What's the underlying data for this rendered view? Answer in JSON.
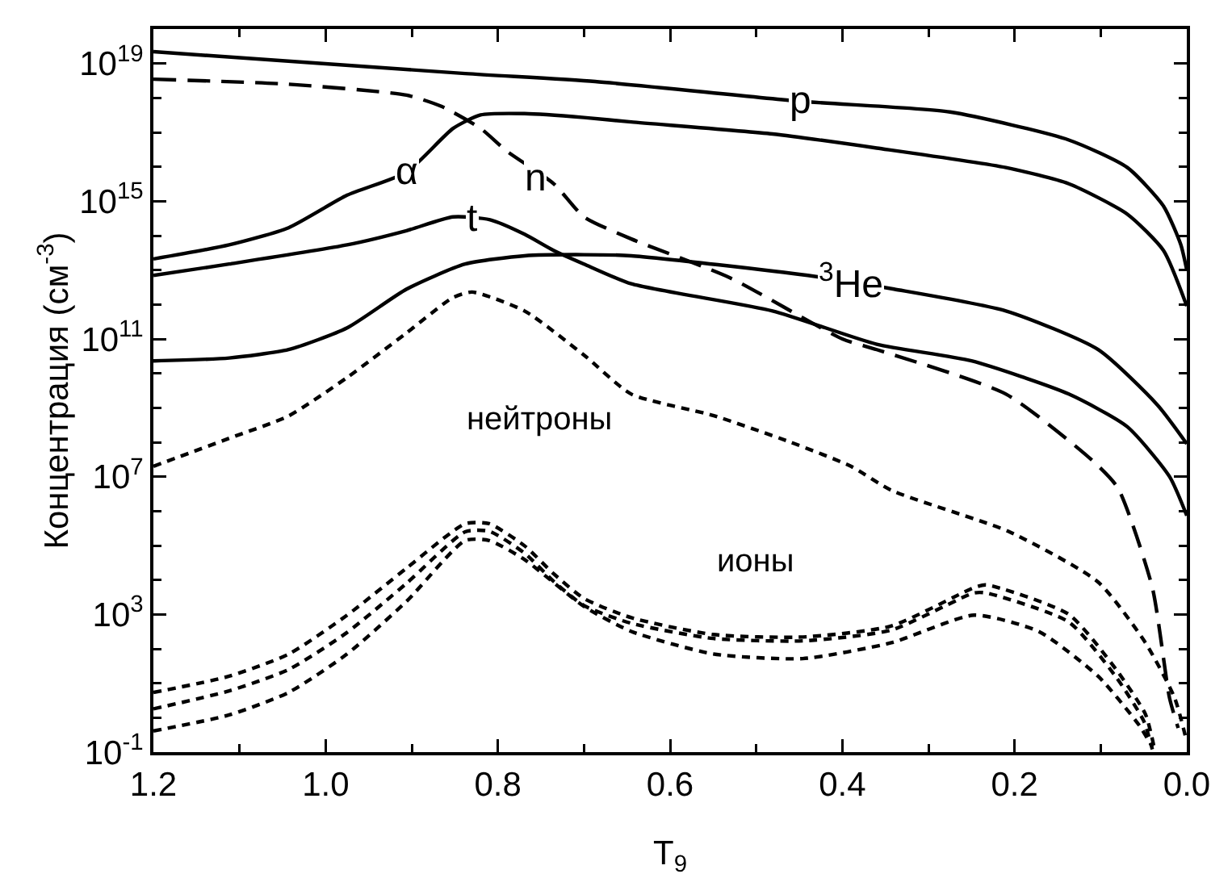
{
  "chart_data": {
    "type": "line",
    "xlabel": "T$_{9}$",
    "ylabel": "Концентрация (см$^{-3}$)",
    "log": "y",
    "grid": false,
    "marker": "none",
    "xlim": [
      1.2,
      0.0
    ],
    "xticks": [
      {
        "value": 1.2,
        "label": "1.2"
      },
      {
        "value": 1.1,
        "label": null
      },
      {
        "value": 1.0,
        "label": "1.0"
      },
      {
        "value": 0.9,
        "label": null
      },
      {
        "value": 0.8,
        "label": "0.8"
      },
      {
        "value": 0.7,
        "label": null
      },
      {
        "value": 0.6,
        "label": "0.6"
      },
      {
        "value": 0.5,
        "label": null
      },
      {
        "value": 0.4,
        "label": "0.4"
      },
      {
        "value": 0.3,
        "label": null
      },
      {
        "value": 0.2,
        "label": "0.2"
      },
      {
        "value": 0.1,
        "label": null
      },
      {
        "value": 0.0,
        "label": "0.0"
      }
    ],
    "ylim": [
      0.1,
      1e+20
    ],
    "yticks": [
      {
        "value": 0.1,
        "label": "10$^{-1}$"
      },
      {
        "value": 1,
        "label": null
      },
      {
        "value": 10,
        "label": null
      },
      {
        "value": 100,
        "label": null
      },
      {
        "value": 1000.0,
        "label": "10$^{3}$"
      },
      {
        "value": 10000.0,
        "label": null
      },
      {
        "value": 100000.0,
        "label": null
      },
      {
        "value": 1000000.0,
        "label": null
      },
      {
        "value": 10000000.0,
        "label": "10$^{7}$"
      },
      {
        "value": 100000000.0,
        "label": null
      },
      {
        "value": 1000000000.0,
        "label": null
      },
      {
        "value": 10000000000.0,
        "label": null
      },
      {
        "value": 100000000000.0,
        "label": "10$^{11}$"
      },
      {
        "value": 1000000000000.0,
        "label": null
      },
      {
        "value": 10000000000000.0,
        "label": null
      },
      {
        "value": 100000000000000.0,
        "label": null
      },
      {
        "value": 1000000000000000.0,
        "label": "10$^{15}$"
      },
      {
        "value": 1e+16,
        "label": null
      },
      {
        "value": 1e+17,
        "label": null
      },
      {
        "value": 1e+18,
        "label": null
      },
      {
        "value": 1e+19,
        "label": "10$^{19}$"
      }
    ],
    "series": [
      {
        "color": "#000000",
        "line_style": "solid",
        "x": [
          1.2,
          0.838,
          0.687,
          0.45,
          0.275,
          0.137,
          0.069,
          0.027,
          0.007,
          0.0
        ],
        "values": [
          2.2e+19,
          5.1e+18,
          3e+18,
          8e+17,
          3.9e+17,
          6e+16,
          9500000000000000.0,
          720000000000000.0,
          55000000000000.0,
          10000000000000.0
        ]
      },
      {
        "color": "#000000",
        "line_style": "solid",
        "x": [
          1.2,
          1.112,
          1.043,
          0.975,
          0.906,
          0.852,
          0.82,
          0.769,
          0.7,
          0.645,
          0.481,
          0.36,
          0.21,
          0.137,
          0.069,
          0.027,
          0.0
        ],
        "values": [
          21000000000000.0,
          54000000000000.0,
          170000000000000.0,
          1500000000000000.0,
          7000000000000000.0,
          1.3e+17,
          3.2e+17,
          3.5e+17,
          2.7e+17,
          2e+17,
          9e+16,
          3.5e+16,
          9500000000000000.0,
          3200000000000000.0,
          420000000000000.0,
          37000000000000.0,
          900000000000.0
        ]
      },
      {
        "color": "#000000",
        "line_style": "solid",
        "x": [
          1.2,
          1.112,
          0.975,
          0.906,
          0.852,
          0.809,
          0.769,
          0.735,
          0.7,
          0.645,
          0.481,
          0.36,
          0.25,
          0.137,
          0.069,
          0.02,
          0.0
        ],
        "values": [
          7000000000000.0,
          15000000000000.0,
          54000000000000.0,
          140000000000000.0,
          350000000000000.0,
          290000000000000.0,
          110000000000000.0,
          37000000000000.0,
          15000000000000.0,
          4000000000000.0,
          650000000000.0,
          70000000000.0,
          23000000000.0,
          2500000000.0,
          280000000.0,
          10000000.0,
          740000.0
        ]
      },
      {
        "color": "#000000",
        "line_style": "solid",
        "x": [
          1.2,
          1.112,
          1.043,
          0.975,
          0.906,
          0.838,
          0.769,
          0.7,
          0.645,
          0.44,
          0.34,
          0.21,
          0.103,
          0.034,
          0.0
        ],
        "values": [
          23000000000.0,
          28000000000.0,
          49000000000.0,
          210000000000.0,
          2800000000000.0,
          15000000000000.0,
          26000000000000.0,
          28000000000000.0,
          26000000000000.0,
          7000000000000.0,
          2800000000000.0,
          650000000000.0,
          49000000000.0,
          1200000000.0,
          90000000.0
        ]
      },
      {
        "color": "#000000",
        "line_style": "dashed",
        "x": [
          1.2,
          1.043,
          0.906,
          0.865,
          0.82,
          0.79,
          0.735,
          0.7,
          0.645,
          0.53,
          0.4,
          0.36,
          0.21,
          0.11,
          0.08,
          0.04,
          0.02,
          0.01
        ],
        "values": [
          3.5e+18,
          2.5e+18,
          1.2e+18,
          5.6e+17,
          1.3e+17,
          2.9e+16,
          3200000000000000.0,
          350000000000000.0,
          80000000000000.0,
          5900000000000.0,
          100000000000.0,
          49000000000.0,
          2500000000.0,
          30000000.0,
          4700000.0,
          6000.0,
          3.7,
          0.5
        ]
      },
      {
        "color": "#000000",
        "line_style": "dotted",
        "x": [
          1.2,
          1.112,
          1.043,
          0.975,
          0.906,
          0.852,
          0.83,
          0.769,
          0.7,
          0.645,
          0.55,
          0.46,
          0.39,
          0.343,
          0.206,
          0.103,
          0.048,
          0.014,
          0.0
        ],
        "values": [
          20000000.0,
          130000000.0,
          580000000.0,
          7600000000.0,
          150000000000.0,
          1600000000000.0,
          2300000000000.0,
          650000000000.0,
          34000000000.0,
          2500000000.0,
          600000000.0,
          100000000.0,
          20000000.0,
          4000000.0,
          250000.0,
          8700.0,
          150,
          3.7,
          0.2
        ]
      },
      {
        "color": "#000000",
        "line_style": "dotted",
        "x": [
          1.2,
          1.112,
          1.043,
          0.975,
          0.906,
          0.838,
          0.81,
          0.769,
          0.735,
          0.7,
          0.645,
          0.55,
          0.446,
          0.343,
          0.247,
          0.233,
          0.137,
          0.082,
          0.048,
          0.038
        ],
        "values": [
          5.4,
          16,
          70,
          950,
          22000.0,
          430000.0,
          430000.0,
          98000.0,
          15000.0,
          2900.0,
          800,
          260,
          220,
          460,
          6000.0,
          7200.0,
          1000.0,
          25,
          1.26,
          0.14
        ]
      },
      {
        "color": "#000000",
        "line_style": "dotted",
        "x": [
          1.2,
          1.112,
          1.043,
          0.975,
          0.906,
          0.838,
          0.81,
          0.769,
          0.735,
          0.7,
          0.645,
          0.55,
          0.446,
          0.343,
          0.247,
          0.233,
          0.137,
          0.082,
          0.05,
          0.04
        ],
        "values": [
          1.8,
          6,
          25,
          300,
          8000.0,
          250000.0,
          260000.0,
          60000.0,
          9000.0,
          1800.0,
          550,
          200,
          170,
          350,
          4200.0,
          4200.0,
          600,
          15,
          0.8,
          0.12
        ]
      },
      {
        "color": "#000000",
        "line_style": "dotted",
        "x": [
          1.2,
          1.112,
          1.043,
          0.975,
          0.906,
          0.838,
          0.81,
          0.769,
          0.7,
          0.645,
          0.55,
          0.446,
          0.343,
          0.247,
          0.172,
          0.103,
          0.055,
          0.04
        ],
        "values": [
          0.41,
          1.2,
          5.4,
          71,
          2400.0,
          140000.0,
          140000.0,
          39000.0,
          1700.0,
          320,
          71,
          52,
          150,
          950,
          320,
          16,
          0.59,
          0.14
        ]
      }
    ],
    "annotations": [
      {
        "text": "p",
        "x": 0.45,
        "y": 8e+17
      },
      {
        "text": "α",
        "x": 0.906,
        "y": 7000000000000000.0
      },
      {
        "text": "n",
        "x": 0.757,
        "y": 4600000000000000.0
      },
      {
        "text": "t",
        "x": 0.83,
        "y": 320000000000000.0
      },
      {
        "text": "$^{3}$He",
        "x": 0.39,
        "y": 4400000000000.0
      },
      "нейтроны",
      "ионы"
    ]
  }
}
